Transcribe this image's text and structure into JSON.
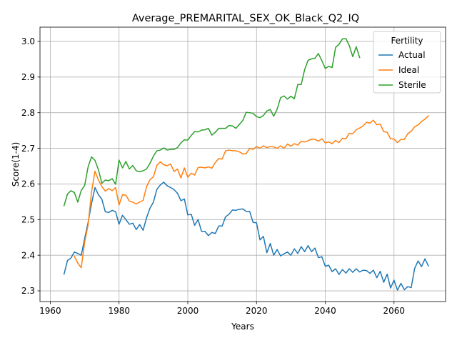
{
  "chart_data": {
    "type": "line",
    "title": "Average_PREMARITAL_SEX_OK_Black_Q2_IQ",
    "xlabel": "Years",
    "ylabel": "Score(1-4)",
    "xlim": [
      1957,
      2075
    ],
    "ylim": [
      2.27,
      3.04
    ],
    "xticks": [
      1960,
      1980,
      2000,
      2020,
      2040,
      2060
    ],
    "yticks": [
      2.3,
      2.4,
      2.5,
      2.6,
      2.7,
      2.8,
      2.9,
      3.0
    ],
    "ytick_labels": [
      "2.3",
      "2.4",
      "2.5",
      "2.6",
      "2.7",
      "2.8",
      "2.9",
      "3.0"
    ],
    "grid": true,
    "legend": {
      "title": "Fertility",
      "position": "top-right"
    },
    "series": [
      {
        "name": "Actual",
        "color": "#1f77b4",
        "x_start": 1964,
        "values": [
          2.347,
          2.385,
          2.392,
          2.409,
          2.405,
          2.4,
          2.447,
          2.492,
          2.545,
          2.59,
          2.57,
          2.557,
          2.522,
          2.52,
          2.526,
          2.522,
          2.487,
          2.512,
          2.5,
          2.487,
          2.49,
          2.472,
          2.486,
          2.47,
          2.505,
          2.532,
          2.549,
          2.585,
          2.597,
          2.605,
          2.595,
          2.59,
          2.584,
          2.574,
          2.553,
          2.558,
          2.513,
          2.515,
          2.484,
          2.5,
          2.467,
          2.467,
          2.455,
          2.464,
          2.461,
          2.482,
          2.482,
          2.508,
          2.515,
          2.527,
          2.526,
          2.529,
          2.53,
          2.523,
          2.523,
          2.492,
          2.491,
          2.443,
          2.453,
          2.407,
          2.433,
          2.4,
          2.416,
          2.398,
          2.404,
          2.409,
          2.4,
          2.418,
          2.405,
          2.424,
          2.41,
          2.427,
          2.41,
          2.42,
          2.393,
          2.396,
          2.369,
          2.372,
          2.354,
          2.362,
          2.346,
          2.36,
          2.35,
          2.362,
          2.352,
          2.362,
          2.353,
          2.358,
          2.357,
          2.349,
          2.358,
          2.337,
          2.355,
          2.324,
          2.347,
          2.308,
          2.33,
          2.302,
          2.321,
          2.303,
          2.312,
          2.309,
          2.363,
          2.384,
          2.368,
          2.39,
          2.37
        ]
      },
      {
        "name": "Ideal",
        "color": "#ff7f0e",
        "x_start": 1967,
        "values": [
          2.397,
          2.378,
          2.365,
          2.437,
          2.485,
          2.578,
          2.636,
          2.611,
          2.593,
          2.58,
          2.587,
          2.581,
          2.59,
          2.541,
          2.57,
          2.568,
          2.552,
          2.549,
          2.544,
          2.549,
          2.554,
          2.592,
          2.612,
          2.62,
          2.652,
          2.662,
          2.654,
          2.651,
          2.656,
          2.635,
          2.642,
          2.617,
          2.645,
          2.619,
          2.63,
          2.625,
          2.646,
          2.647,
          2.645,
          2.648,
          2.644,
          2.66,
          2.671,
          2.67,
          2.693,
          2.695,
          2.693,
          2.693,
          2.69,
          2.684,
          2.685,
          2.7,
          2.697,
          2.705,
          2.7,
          2.707,
          2.702,
          2.705,
          2.704,
          2.7,
          2.707,
          2.7,
          2.712,
          2.706,
          2.713,
          2.709,
          2.72,
          2.718,
          2.721,
          2.726,
          2.725,
          2.72,
          2.727,
          2.715,
          2.718,
          2.713,
          2.722,
          2.716,
          2.728,
          2.727,
          2.742,
          2.741,
          2.752,
          2.757,
          2.763,
          2.773,
          2.771,
          2.779,
          2.766,
          2.768,
          2.747,
          2.745,
          2.727,
          2.726,
          2.716,
          2.725,
          2.725,
          2.741,
          2.748,
          2.76,
          2.766,
          2.775,
          2.782,
          2.791
        ]
      },
      {
        "name": "Sterile",
        "color": "#2ca02c",
        "x_start": 1964,
        "values": [
          2.539,
          2.572,
          2.581,
          2.576,
          2.549,
          2.582,
          2.596,
          2.648,
          2.676,
          2.666,
          2.64,
          2.602,
          2.611,
          2.609,
          2.615,
          2.599,
          2.667,
          2.645,
          2.663,
          2.642,
          2.652,
          2.637,
          2.634,
          2.637,
          2.642,
          2.658,
          2.678,
          2.693,
          2.695,
          2.701,
          2.695,
          2.697,
          2.697,
          2.702,
          2.715,
          2.724,
          2.723,
          2.736,
          2.747,
          2.746,
          2.751,
          2.752,
          2.756,
          2.737,
          2.745,
          2.756,
          2.756,
          2.756,
          2.764,
          2.763,
          2.756,
          2.767,
          2.778,
          2.801,
          2.8,
          2.798,
          2.789,
          2.786,
          2.792,
          2.805,
          2.809,
          2.79,
          2.81,
          2.842,
          2.847,
          2.838,
          2.846,
          2.839,
          2.879,
          2.879,
          2.921,
          2.947,
          2.951,
          2.953,
          2.966,
          2.946,
          2.924,
          2.93,
          2.927,
          2.983,
          2.992,
          3.007,
          3.008,
          2.988,
          2.957,
          2.985,
          2.955
        ]
      }
    ]
  }
}
